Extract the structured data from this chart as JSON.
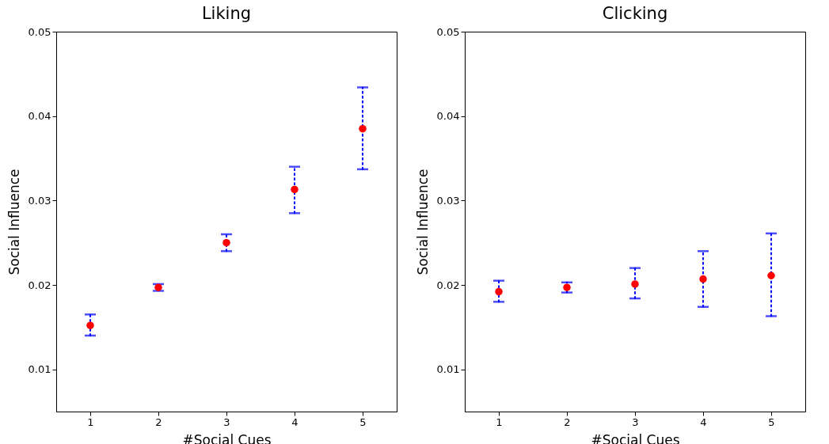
{
  "chart_data": [
    {
      "type": "scatter",
      "title": "Liking",
      "xlabel": "#Social Cues",
      "ylabel": "Social Influence",
      "x": [
        1,
        2,
        3,
        4,
        5
      ],
      "series": [
        {
          "color": "#ff0000",
          "values": [
            0.0152,
            0.0197,
            0.025,
            0.0313,
            0.0385
          ],
          "errors": [
            [
              0.014,
              0.0165
            ],
            [
              0.0193,
              0.0201
            ],
            [
              0.024,
              0.026
            ],
            [
              0.0285,
              0.034
            ],
            [
              0.0337,
              0.0434
            ]
          ]
        }
      ],
      "xlim": [
        0.5,
        5.5
      ],
      "xticks": [
        1,
        2,
        3,
        4,
        5
      ],
      "ylim": [
        0.005,
        0.05
      ],
      "yticks": [
        0.01,
        0.02,
        0.03,
        0.04,
        0.05
      ],
      "grid": false,
      "marker": "circle"
    },
    {
      "type": "scatter",
      "title": "Clicking",
      "xlabel": "#Social Cues",
      "ylabel": "Social Influence",
      "x": [
        1,
        2,
        3,
        4,
        5
      ],
      "series": [
        {
          "color": "#ff0000",
          "values": [
            0.0192,
            0.0197,
            0.0201,
            0.0207,
            0.0211
          ],
          "errors": [
            [
              0.018,
              0.0205
            ],
            [
              0.0191,
              0.0203
            ],
            [
              0.0184,
              0.022
            ],
            [
              0.0174,
              0.024
            ],
            [
              0.0163,
              0.0261
            ]
          ]
        }
      ],
      "xlim": [
        0.5,
        5.5
      ],
      "xticks": [
        1,
        2,
        3,
        4,
        5
      ],
      "ylim": [
        0.005,
        0.05
      ],
      "yticks": [
        0.01,
        0.02,
        0.03,
        0.04,
        0.05
      ],
      "grid": false,
      "marker": "circle"
    }
  ]
}
